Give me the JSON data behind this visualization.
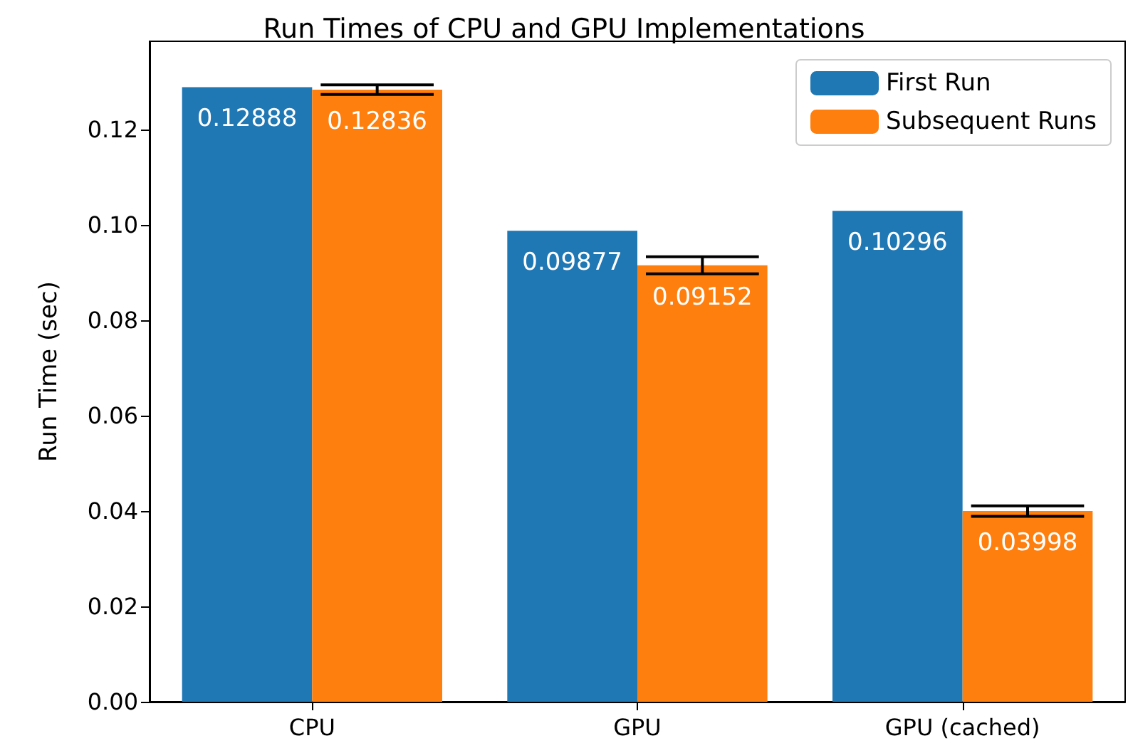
{
  "chart_data": {
    "type": "bar",
    "title": "Run Times of CPU and GPU Implementations",
    "ylabel": "Run Time (sec)",
    "categories": [
      "CPU",
      "GPU",
      "GPU (cached)"
    ],
    "series": [
      {
        "name": "First Run",
        "color": "#1f77b4",
        "values": [
          0.12888,
          0.09877,
          0.10296
        ]
      },
      {
        "name": "Subsequent Runs",
        "color": "#ff7f0e",
        "values": [
          0.12836,
          0.09152,
          0.03998
        ],
        "errors": [
          0.001,
          0.0018,
          0.0011
        ]
      }
    ],
    "ylim": [
      0,
      0.1385
    ],
    "yticks": [
      {
        "value": 0,
        "label": "0.00"
      },
      {
        "value": 0.02,
        "label": "0.02"
      },
      {
        "value": 0.04,
        "label": "0.04"
      },
      {
        "value": 0.06,
        "label": "0.06"
      },
      {
        "value": 0.08,
        "label": "0.08"
      },
      {
        "value": 0.1,
        "label": "0.10"
      },
      {
        "value": 0.12,
        "label": "0.12"
      }
    ],
    "data_labels": true,
    "legend": "top right",
    "grid": false
  }
}
